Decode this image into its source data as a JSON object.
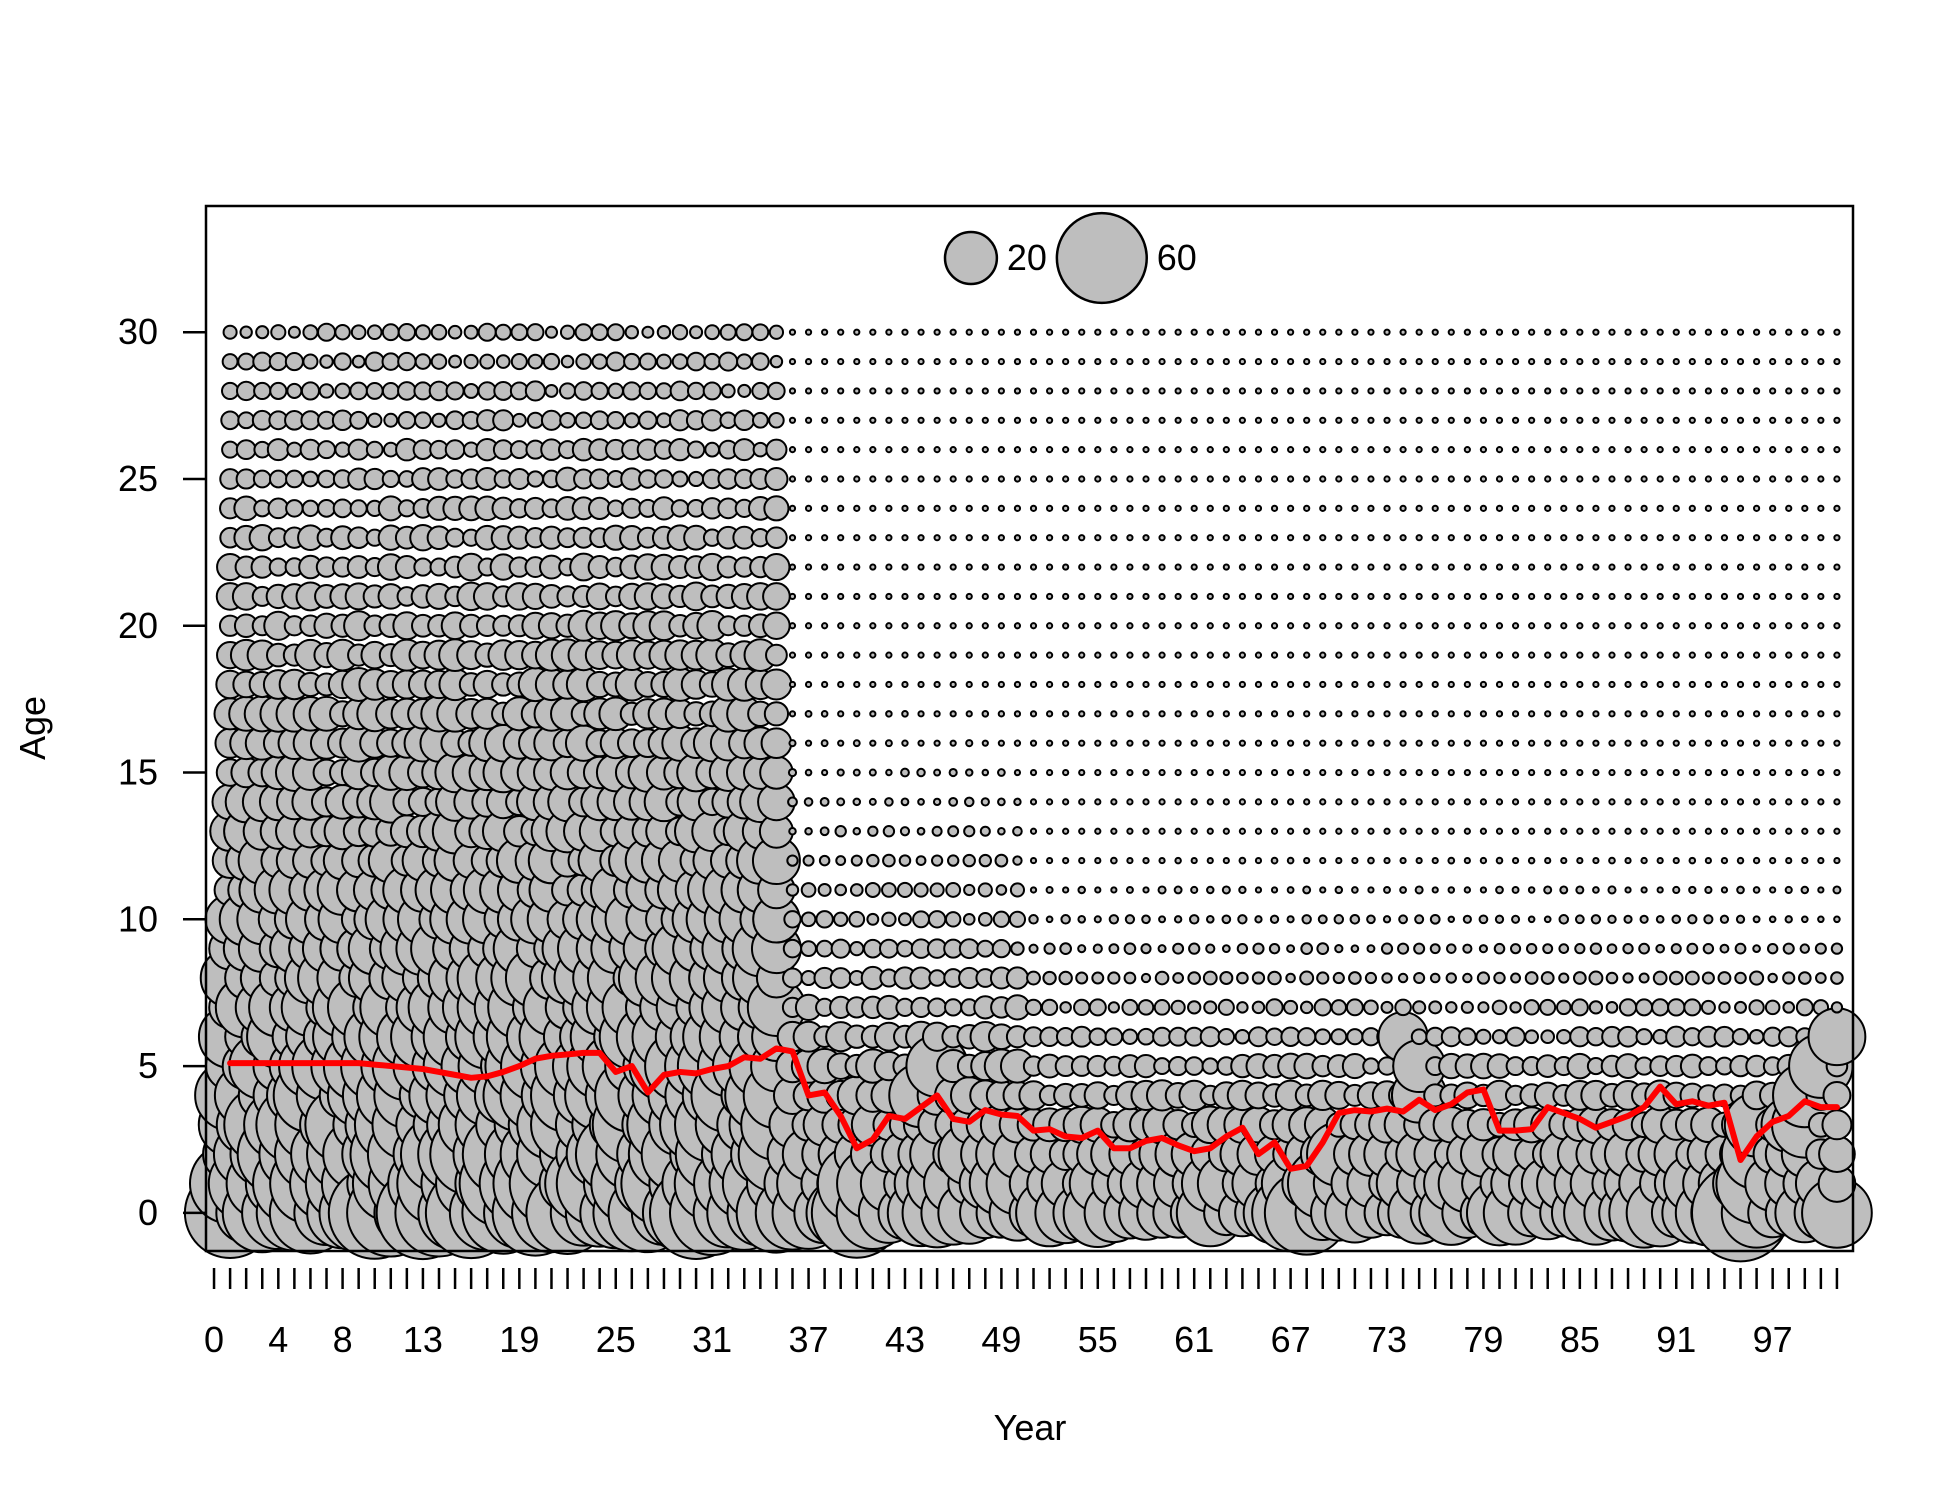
{
  "chart_data": {
    "type": "scatter",
    "xlabel": "Year",
    "ylabel": "Age",
    "x_tick_labels": [
      "0",
      "4",
      "8",
      "13",
      "19",
      "25",
      "31",
      "37",
      "43",
      "49",
      "55",
      "61",
      "67",
      "73",
      "79",
      "85",
      "91",
      "97"
    ],
    "y_tick_labels": [
      "0",
      "5",
      "10",
      "15",
      "20",
      "25",
      "30"
    ],
    "years": [
      1,
      101
    ],
    "ages": [
      0,
      30
    ],
    "legend": {
      "placement": "top-center",
      "entries": [
        {
          "label": "20",
          "value": 20
        },
        {
          "label": "60",
          "value": 60
        }
      ]
    },
    "mean_age_line": {
      "name": "",
      "x": [
        1,
        2,
        3,
        4,
        5,
        6,
        7,
        8,
        9,
        10,
        11,
        12,
        13,
        14,
        15,
        16,
        17,
        18,
        19,
        20,
        21,
        22,
        23,
        24,
        25,
        26,
        27,
        28,
        29,
        30,
        31,
        32,
        33,
        34,
        35,
        36,
        37,
        38,
        39,
        40,
        41,
        42,
        43,
        44,
        45,
        46,
        47,
        48,
        49,
        50,
        51,
        52,
        53,
        54,
        55,
        56,
        57,
        58,
        59,
        60,
        61,
        62,
        63,
        64,
        65,
        66,
        67,
        68,
        69,
        70,
        71,
        72,
        73,
        74,
        75,
        76,
        77,
        78,
        79,
        80,
        81,
        82,
        83,
        84,
        85,
        86,
        87,
        88,
        89,
        90,
        91,
        92,
        93,
        94,
        95,
        96,
        97,
        98,
        99,
        100,
        101
      ],
      "y": [
        5.1,
        5.1,
        5.1,
        5.1,
        5.1,
        5.1,
        5.1,
        5.1,
        5.1,
        5.05,
        5.0,
        4.95,
        4.9,
        4.8,
        4.7,
        4.6,
        4.65,
        4.8,
        5.0,
        5.25,
        5.35,
        5.4,
        5.45,
        5.45,
        4.8,
        5.0,
        4.1,
        4.7,
        4.8,
        4.75,
        4.9,
        5.0,
        5.3,
        5.25,
        5.6,
        5.5,
        4.0,
        4.1,
        3.3,
        2.2,
        2.5,
        3.3,
        3.2,
        3.6,
        4.0,
        3.2,
        3.1,
        3.5,
        3.35,
        3.3,
        2.8,
        2.85,
        2.6,
        2.55,
        2.8,
        2.2,
        2.2,
        2.45,
        2.55,
        2.3,
        2.1,
        2.2,
        2.6,
        2.9,
        2.0,
        2.4,
        1.5,
        1.6,
        2.4,
        3.4,
        3.5,
        3.45,
        3.55,
        3.45,
        3.85,
        3.5,
        3.7,
        4.1,
        4.2,
        2.8,
        2.8,
        2.85,
        3.6,
        3.4,
        3.2,
        2.9,
        3.1,
        3.3,
        3.6,
        4.3,
        3.7,
        3.8,
        3.65,
        3.75,
        1.8,
        2.6,
        3.1,
        3.3,
        3.8,
        3.6,
        3.6
      ],
      "color": "#ff0000"
    },
    "bubble_fill": "#bebebe",
    "bubble_stroke": "#000000",
    "xlim": [
      -0.5,
      102
    ],
    "ylim": [
      -1.3,
      34.3
    ]
  }
}
